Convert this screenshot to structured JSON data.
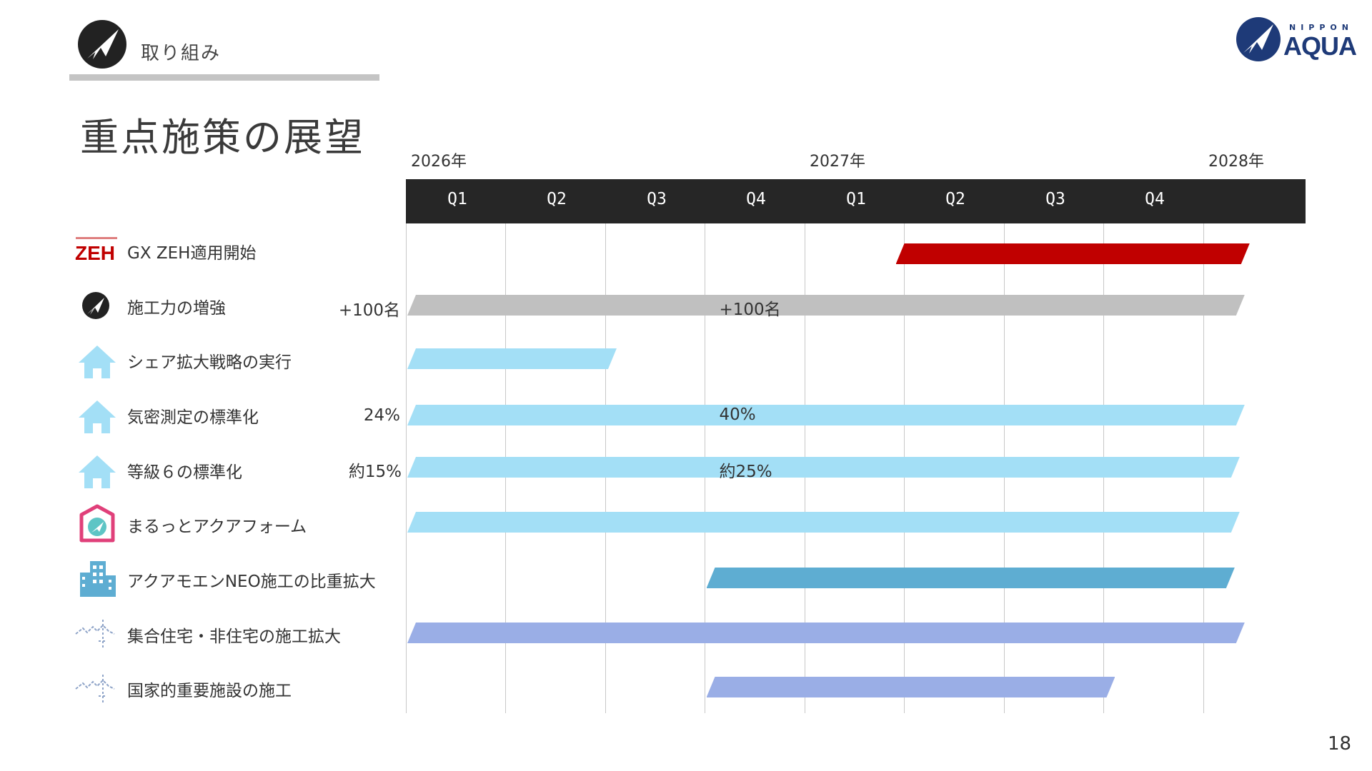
{
  "header": {
    "section_label": "取り組み",
    "title": "重点施策の展望",
    "brand_top": "NIPPON",
    "brand_main": "AQUA",
    "zeh_logo_text": "ZEH"
  },
  "timeline": {
    "years": [
      "2026年",
      "2027年",
      "2028年"
    ],
    "quarters": [
      "Q1",
      "Q2",
      "Q3",
      "Q4",
      "Q1",
      "Q2",
      "Q3",
      "Q4"
    ],
    "header_bg": "#262626"
  },
  "rows": [
    {
      "icon": "zeh-logo-icon",
      "label": "GX ZEH適用開始",
      "pre_label": "",
      "bar_label": "",
      "color": "#c00000",
      "start_quarter": 4.9,
      "end_quarter": 8.45
    },
    {
      "icon": "plane-icon",
      "label": "施工力の増強",
      "pre_label": "+100名",
      "bar_label": "+100名",
      "color": "#c0c0c0",
      "start_quarter": 0,
      "end_quarter": 8.4
    },
    {
      "icon": "house-icon",
      "label": "シェア拡大戦略の実行",
      "pre_label": "",
      "bar_label": "",
      "color": "#a3dff6",
      "start_quarter": 0,
      "end_quarter": 2.1
    },
    {
      "icon": "house-icon",
      "label": "気密測定の標準化",
      "pre_label": "24%",
      "bar_label": "40%",
      "color": "#a3dff6",
      "start_quarter": 0,
      "end_quarter": 8.4
    },
    {
      "icon": "house-icon",
      "label": "等級６の標準化",
      "pre_label": "約15%",
      "bar_label": "約25%",
      "color": "#a3dff6",
      "start_quarter": 0,
      "end_quarter": 8.35
    },
    {
      "icon": "marutto-app-icon",
      "label": "まるっとアクアフォーム",
      "pre_label": "",
      "bar_label": "",
      "color": "#a3dff6",
      "start_quarter": 0,
      "end_quarter": 8.35
    },
    {
      "icon": "building-icon",
      "label": "アクアモエンNEO施工の比重拡大",
      "pre_label": "",
      "bar_label": "",
      "color": "#5eadd2",
      "start_quarter": 3,
      "end_quarter": 8.3
    },
    {
      "icon": "skyline-icon",
      "label": "集合住宅・非住宅の施工拡大",
      "pre_label": "",
      "bar_label": "",
      "color": "#9aaee6",
      "start_quarter": 0,
      "end_quarter": 8.4
    },
    {
      "icon": "skyline-icon",
      "label": "国家的重要施設の施工",
      "pre_label": "",
      "bar_label": "",
      "color": "#9aaee6",
      "start_quarter": 3,
      "end_quarter": 7.1
    }
  ],
  "page_number": "18"
}
